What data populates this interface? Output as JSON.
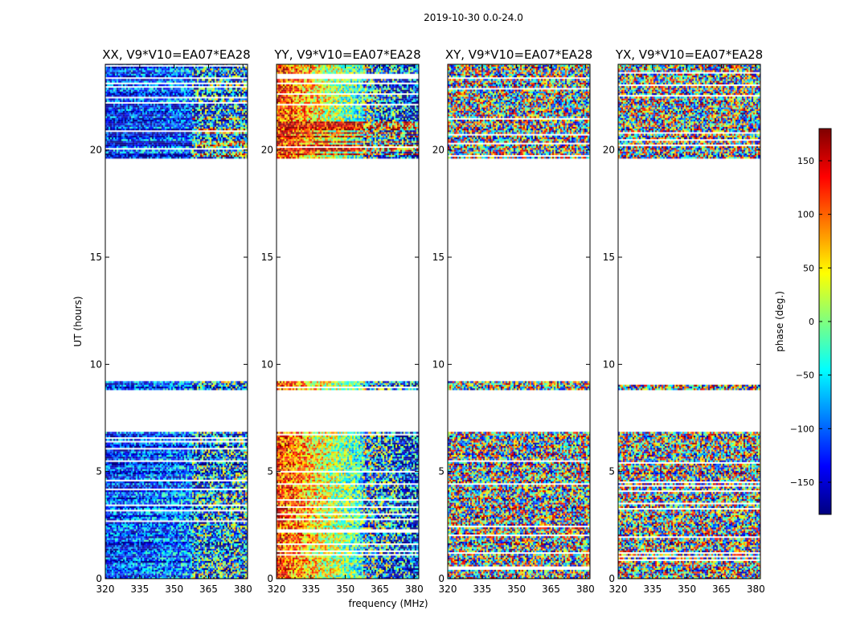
{
  "chart_data": {
    "type": "heatmap",
    "suptitle": "2019-10-30 0.0-24.0",
    "xlabel": "frequency (MHz)",
    "ylabel": "UT (hours)",
    "xlim": [
      320,
      382
    ],
    "ylim": [
      0,
      24
    ],
    "x_ticks": [
      320,
      335,
      350,
      365,
      380
    ],
    "y_ticks": [
      0,
      5,
      10,
      15,
      20
    ],
    "panels": [
      {
        "title": "XX, V9*V10=EA07*EA28",
        "correlation": "XX",
        "structure": "coherent"
      },
      {
        "title": "YY, V9*V10=EA07*EA28",
        "correlation": "YY",
        "structure": "coherent"
      },
      {
        "title": "XY, V9*V10=EA07*EA28",
        "correlation": "XY",
        "structure": "noise"
      },
      {
        "title": "YX, V9*V10=EA07*EA28",
        "correlation": "YX",
        "structure": "noise"
      }
    ],
    "data_time_ranges_hours": [
      [
        0.0,
        6.8
      ],
      [
        8.8,
        9.2
      ],
      [
        19.6,
        24.0
      ]
    ],
    "colorbar": {
      "label": "phase (deg.)",
      "range": [
        -180,
        180
      ],
      "ticks": [
        150,
        100,
        50,
        0,
        -50,
        -100,
        -150
      ],
      "tick_labels": [
        "150",
        "100",
        "50",
        "0",
        "−50",
        "−100",
        "−150"
      ],
      "colormap": "jet",
      "colors": [
        "#00007f",
        "#0000ff",
        "#007fff",
        "#00ffff",
        "#7fff7f",
        "#ffff00",
        "#ff7f00",
        "#ff0000",
        "#7f0000"
      ]
    }
  }
}
